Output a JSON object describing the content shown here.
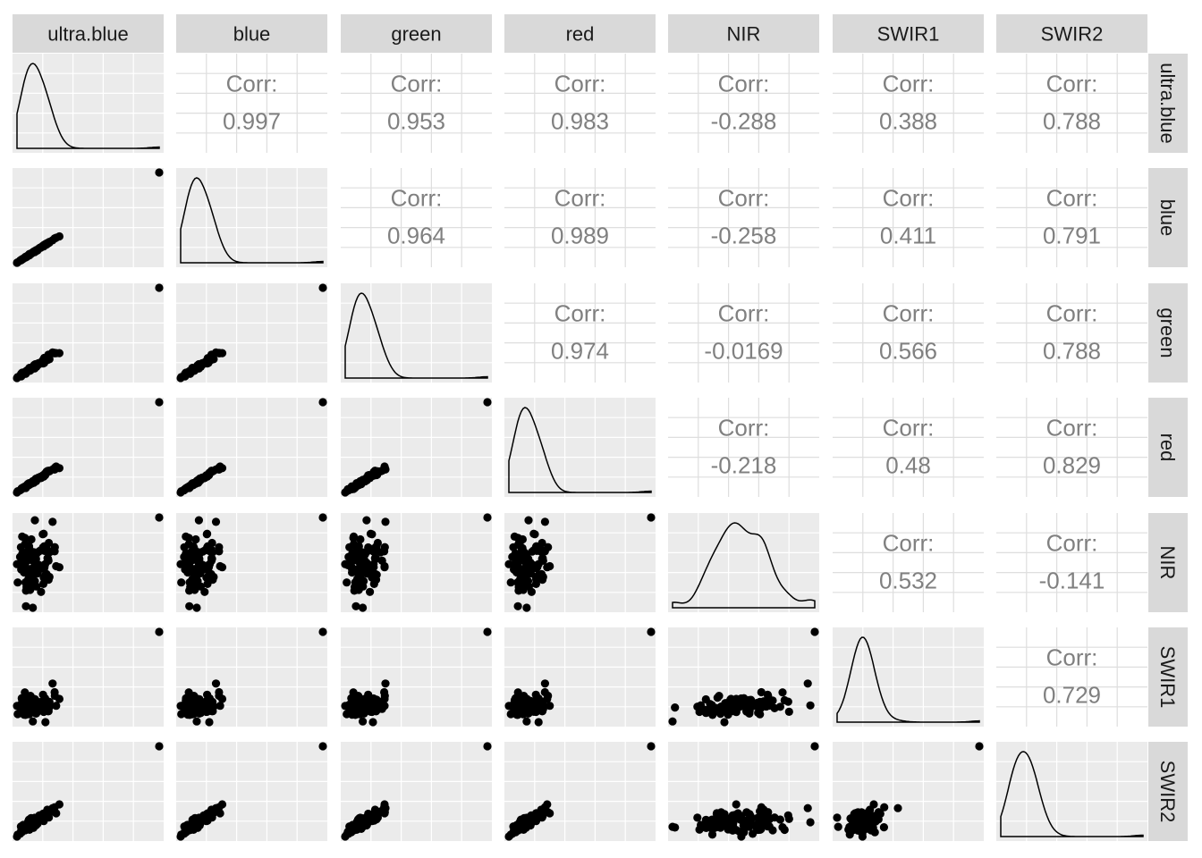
{
  "chart_data": {
    "type": "scatter-matrix",
    "variables": [
      "ultra.blue",
      "blue",
      "green",
      "red",
      "NIR",
      "SWIR1",
      "SWIR2"
    ],
    "corr_label": "Corr:",
    "correlations": [
      {
        "row": "blue",
        "col": "ultra.blue",
        "value": "0.997"
      },
      {
        "row": "green",
        "col": "ultra.blue",
        "value": "0.953"
      },
      {
        "row": "red",
        "col": "ultra.blue",
        "value": "0.983"
      },
      {
        "row": "NIR",
        "col": "ultra.blue",
        "value": "-0.288"
      },
      {
        "row": "SWIR1",
        "col": "ultra.blue",
        "value": "0.388"
      },
      {
        "row": "SWIR2",
        "col": "ultra.blue",
        "value": "0.788"
      },
      {
        "row": "green",
        "col": "blue",
        "value": "0.964"
      },
      {
        "row": "red",
        "col": "blue",
        "value": "0.989"
      },
      {
        "row": "NIR",
        "col": "blue",
        "value": "-0.258"
      },
      {
        "row": "SWIR1",
        "col": "blue",
        "value": "0.411"
      },
      {
        "row": "SWIR2",
        "col": "blue",
        "value": "0.791"
      },
      {
        "row": "red",
        "col": "green",
        "value": "0.974"
      },
      {
        "row": "NIR",
        "col": "green",
        "value": "-0.0169"
      },
      {
        "row": "SWIR1",
        "col": "green",
        "value": "0.566"
      },
      {
        "row": "SWIR2",
        "col": "green",
        "value": "0.788"
      },
      {
        "row": "NIR",
        "col": "red",
        "value": "-0.218"
      },
      {
        "row": "SWIR1",
        "col": "red",
        "value": "0.48"
      },
      {
        "row": "SWIR2",
        "col": "red",
        "value": "0.829"
      },
      {
        "row": "SWIR1",
        "col": "NIR",
        "value": "0.532"
      },
      {
        "row": "SWIR2",
        "col": "NIR",
        "value": "-0.141"
      },
      {
        "row": "SWIR2",
        "col": "SWIR1",
        "value": "0.729"
      }
    ],
    "lower_panels": "scatter",
    "diagonal_panels": "density",
    "upper_panels": "correlation",
    "grid": true,
    "axis_tick_labels": false
  },
  "colors": {
    "panel_bg": "#ebebeb",
    "grid": "#ffffff",
    "strip_bg": "#d9d9d9",
    "point": "#000000",
    "corr_text": "#808080",
    "corr_grid": "#dedede"
  }
}
